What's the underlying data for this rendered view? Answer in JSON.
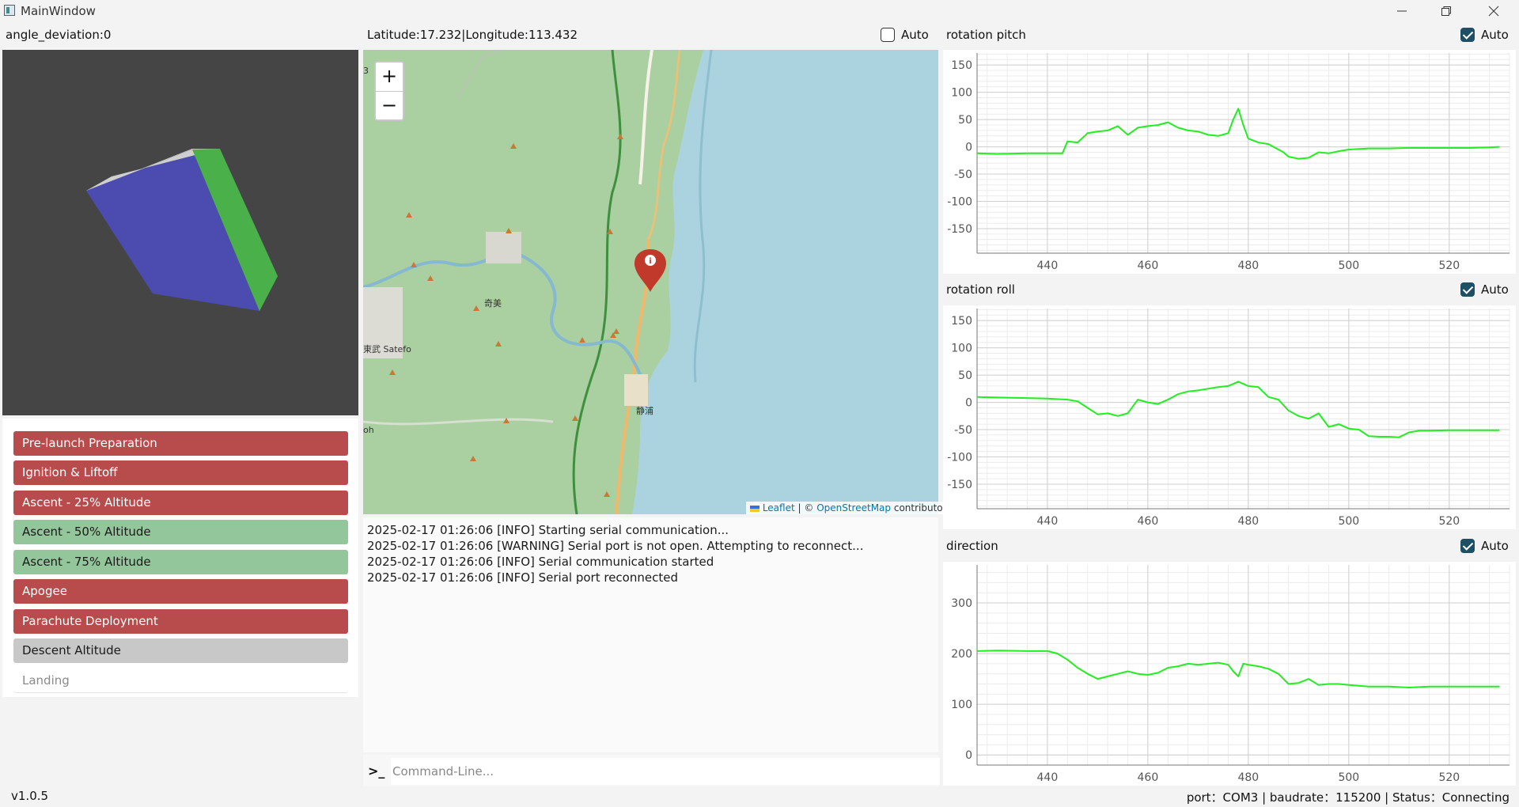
{
  "window": {
    "title": "MainWindow"
  },
  "left": {
    "angle_label": "angle_deviation:0",
    "stages": [
      {
        "label": "Pre-launch Preparation",
        "state": "red"
      },
      {
        "label": "Ignition & Liftoff",
        "state": "red"
      },
      {
        "label": "Ascent - 25% Altitude",
        "state": "red"
      },
      {
        "label": "Ascent - 50% Altitude",
        "state": "green"
      },
      {
        "label": "Ascent - 75% Altitude",
        "state": "green"
      },
      {
        "label": "Apogee",
        "state": "red"
      },
      {
        "label": "Parachute Deployment",
        "state": "red"
      },
      {
        "label": "Descent Altitude",
        "state": "gray"
      },
      {
        "label": "Landing",
        "state": "plain"
      }
    ]
  },
  "map": {
    "coord_label": "Latitude:17.232|Longitude:113.432",
    "auto_label": "Auto",
    "auto_checked": false,
    "zoom_in": "+",
    "zoom_out": "−",
    "attribution": {
      "leaflet": "Leaflet",
      "sep": " | © ",
      "osm": "OpenStreetMap",
      "suffix": " contributors"
    },
    "place_labels": [
      "奇美",
      "静浦",
      "東武 Satefo",
      "oh",
      "3"
    ],
    "colors": {
      "land": "#aacfa0",
      "sea": "#aad3df",
      "marker": "#c0392b"
    }
  },
  "log": {
    "lines": [
      "2025-02-17 01:26:06 [INFO] Starting serial communication...",
      "2025-02-17 01:26:06 [WARNING] Serial port is not open. Attempting to reconnect...",
      "2025-02-17 01:26:06 [INFO] Serial communication started",
      "2025-02-17 01:26:06 [INFO] Serial port reconnected"
    ],
    "prompt": ">_",
    "placeholder": "Command-Line..."
  },
  "charts": {
    "auto_label": "Auto",
    "color": "#22ee22"
  },
  "chart_data": [
    {
      "type": "line",
      "title": "rotation pitch",
      "auto_checked": true,
      "xlim": [
        426,
        532
      ],
      "ylim": [
        -195,
        172
      ],
      "xticks": [
        440,
        460,
        480,
        500,
        520
      ],
      "yticks": [
        150,
        100,
        50,
        0,
        -50,
        -100,
        -150
      ],
      "series": [
        {
          "x": [
            426,
            430,
            436,
            440,
            442,
            443,
            444,
            446,
            448,
            450,
            452,
            454,
            456,
            458,
            460,
            462,
            464,
            466,
            468,
            470,
            472,
            474,
            476,
            477,
            478,
            479,
            480,
            482,
            484,
            486,
            487,
            488,
            490,
            492,
            494,
            496,
            498,
            500,
            504,
            508,
            512,
            516,
            520,
            524,
            528,
            530
          ],
          "y": [
            -12,
            -13,
            -12,
            -12,
            -12,
            -12,
            10,
            8,
            25,
            28,
            30,
            38,
            22,
            35,
            38,
            40,
            45,
            35,
            30,
            28,
            22,
            20,
            25,
            50,
            70,
            40,
            15,
            8,
            5,
            -5,
            -10,
            -18,
            -22,
            -20,
            -10,
            -12,
            -8,
            -5,
            -3,
            -3,
            -2,
            -2,
            -2,
            -2,
            -1,
            0
          ]
        }
      ]
    },
    {
      "type": "line",
      "title": "rotation roll",
      "auto_checked": true,
      "xlim": [
        426,
        532
      ],
      "ylim": [
        -195,
        172
      ],
      "xticks": [
        440,
        460,
        480,
        500,
        520
      ],
      "yticks": [
        150,
        100,
        50,
        0,
        -50,
        -100,
        -150
      ],
      "series": [
        {
          "x": [
            426,
            430,
            436,
            440,
            444,
            446,
            448,
            450,
            452,
            454,
            456,
            458,
            460,
            462,
            464,
            466,
            468,
            470,
            472,
            474,
            476,
            478,
            480,
            482,
            484,
            486,
            488,
            490,
            492,
            494,
            496,
            498,
            500,
            502,
            504,
            506,
            508,
            510,
            512,
            514,
            516,
            520,
            524,
            530
          ],
          "y": [
            10,
            9,
            8,
            7,
            5,
            2,
            -10,
            -22,
            -20,
            -25,
            -20,
            5,
            0,
            -3,
            5,
            15,
            20,
            22,
            25,
            28,
            30,
            38,
            30,
            28,
            10,
            5,
            -15,
            -25,
            -30,
            -20,
            -45,
            -40,
            -48,
            -50,
            -62,
            -63,
            -63,
            -64,
            -55,
            -52,
            -52,
            -51,
            -51,
            -51
          ]
        }
      ]
    },
    {
      "type": "line",
      "title": "direction",
      "auto_checked": true,
      "xlim": [
        426,
        532
      ],
      "ylim": [
        -20,
        375
      ],
      "xticks": [
        440,
        460,
        480,
        500,
        520
      ],
      "yticks": [
        300,
        200,
        100,
        0
      ],
      "series": [
        {
          "x": [
            426,
            430,
            436,
            440,
            442,
            444,
            446,
            448,
            450,
            452,
            454,
            456,
            458,
            460,
            462,
            464,
            466,
            468,
            470,
            472,
            474,
            476,
            477,
            478,
            479,
            480,
            482,
            484,
            486,
            488,
            490,
            492,
            494,
            496,
            498,
            500,
            504,
            508,
            512,
            516,
            520,
            524,
            530
          ],
          "y": [
            205,
            206,
            205,
            205,
            200,
            188,
            172,
            160,
            150,
            155,
            160,
            165,
            160,
            158,
            162,
            172,
            175,
            180,
            178,
            180,
            182,
            178,
            165,
            155,
            180,
            178,
            175,
            170,
            160,
            140,
            142,
            150,
            138,
            140,
            140,
            138,
            135,
            135,
            133,
            135,
            135,
            135,
            135
          ]
        }
      ]
    }
  ],
  "status": {
    "version": "v1.0.5",
    "info": "port：COM3 | baudrate：115200 | Status：Connecting"
  }
}
